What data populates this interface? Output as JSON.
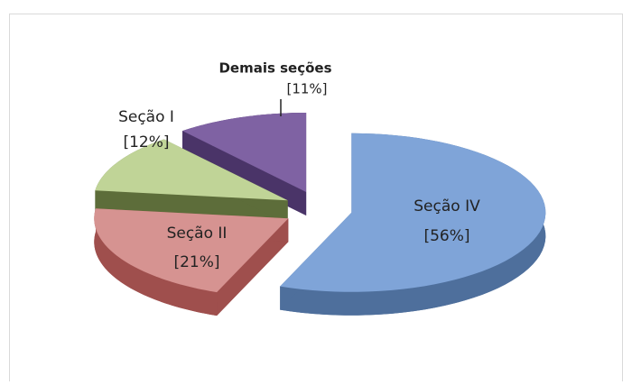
{
  "chart_data": {
    "type": "pie3d",
    "categories": [
      "Seção IV",
      "Seção II",
      "Seção I",
      "Demais seções"
    ],
    "values": [
      56,
      21,
      12,
      11
    ],
    "value_labels": [
      "[56%]",
      "[21%]",
      "[12%]",
      "[11%]"
    ],
    "colors": [
      "#7fa4d8",
      "#d69391",
      "#c0d497",
      "#7f62a3"
    ],
    "side_colors": [
      "#4e6f9c",
      "#9f4f4d",
      "#5d6d3a",
      "#4a3468"
    ]
  }
}
